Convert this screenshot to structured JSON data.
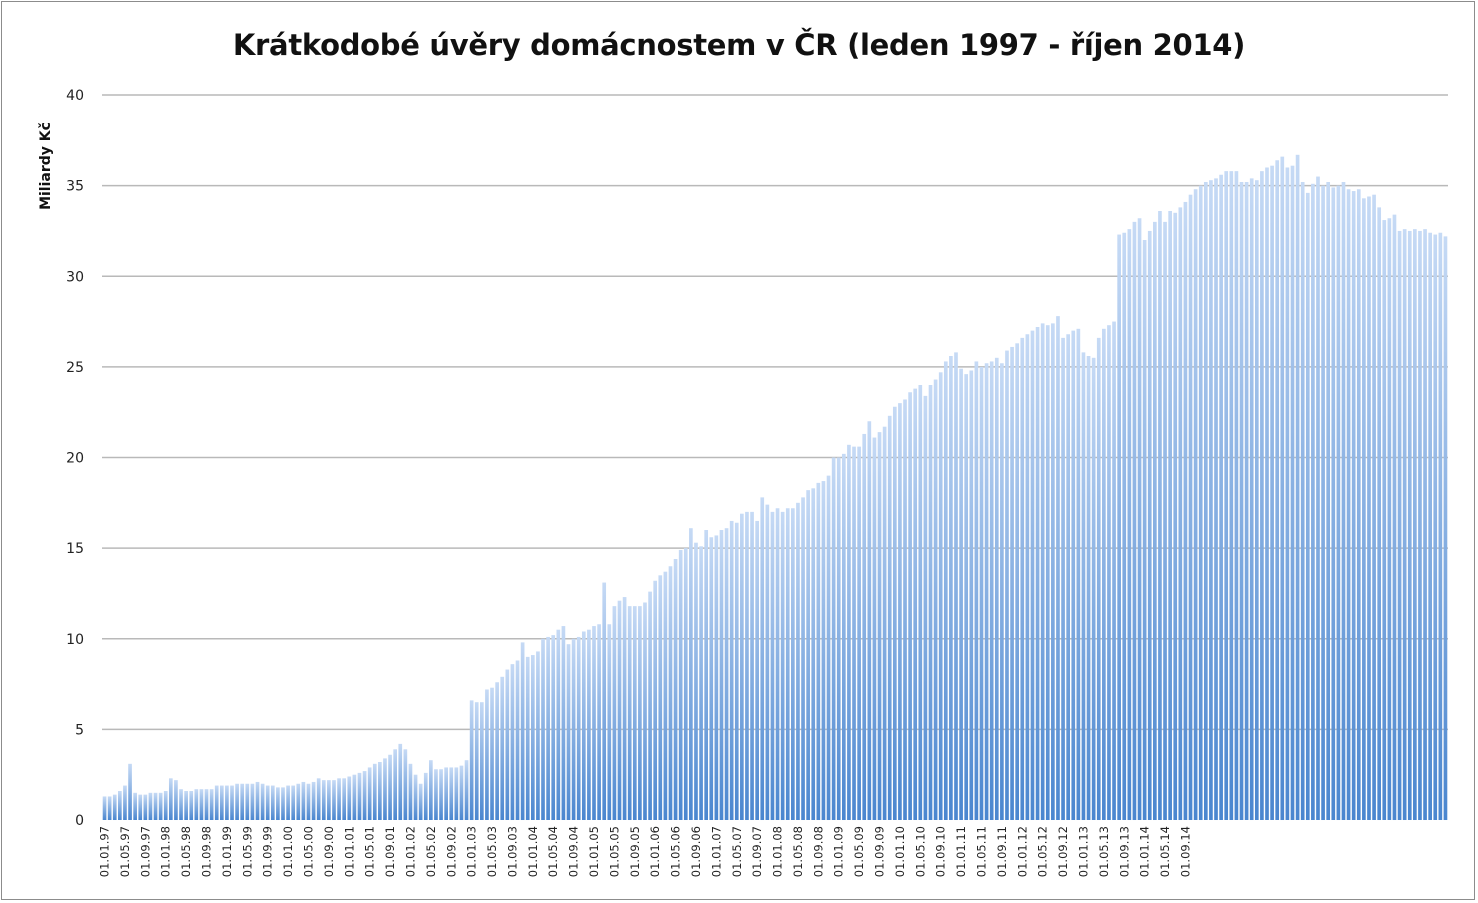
{
  "chart_data": {
    "type": "bar",
    "title": "Krátkodobé úvěry domácnostem v ČR (leden 1997 - říjen 2014)",
    "ylabel": "Miliardy Kč",
    "xlabel": "",
    "ylim": [
      0,
      40
    ],
    "yticks": [
      0,
      5,
      10,
      15,
      20,
      25,
      30,
      35,
      40
    ],
    "grid": true,
    "legend": "none",
    "bar_color_top": "#c6daf5",
    "bar_color_bottom": "#4a86cf",
    "grid_color": "#b9b9b9",
    "x_tick_labels": [
      "01.01.97",
      "01.05.97",
      "01.09.97",
      "01.01.98",
      "01.05.98",
      "01.09.98",
      "01.01.99",
      "01.05.99",
      "01.09.99",
      "01.01.00",
      "01.05.00",
      "01.09.00",
      "01.01.01",
      "01.05.01",
      "01.09.01",
      "01.01.02",
      "01.05.02",
      "01.09.02",
      "01.01.03",
      "01.05.03",
      "01.09.03",
      "01.01.04",
      "01.05.04",
      "01.09.04",
      "01.01.05",
      "01.05.05",
      "01.09.05",
      "01.01.06",
      "01.05.06",
      "01.09.06",
      "01.01.07",
      "01.05.07",
      "01.09.07",
      "01.01.08",
      "01.05.08",
      "01.09.08",
      "01.01.09",
      "01.05.09",
      "01.09.09",
      "01.01.10",
      "01.05.10",
      "01.09.10",
      "01.01.11",
      "01.05.11",
      "01.09.11",
      "01.01.12",
      "01.05.12",
      "01.09.12",
      "01.01.13",
      "01.05.13",
      "01.09.13",
      "01.01.14",
      "01.05.14",
      "01.09.14"
    ],
    "series": [
      {
        "values": [
          1.3,
          1.3,
          1.4,
          1.6,
          1.9,
          3.1,
          1.5,
          1.4,
          1.4,
          1.5,
          1.5,
          1.5,
          1.6,
          2.3,
          2.2,
          1.7,
          1.6,
          1.6,
          1.7,
          1.7,
          1.7,
          1.7,
          1.9,
          1.9,
          1.9,
          1.9,
          2.0,
          2.0,
          2.0,
          2.0,
          2.1,
          2.0,
          1.9,
          1.9,
          1.8,
          1.8,
          1.9,
          1.9,
          2.0,
          2.1,
          2.0,
          2.1,
          2.3,
          2.2,
          2.2,
          2.2,
          2.3,
          2.3,
          2.4,
          2.5,
          2.6,
          2.7,
          2.9,
          3.1,
          3.2,
          3.4,
          3.6,
          3.9,
          4.2,
          3.9,
          3.1,
          2.5,
          2.0,
          2.6,
          3.3,
          2.8,
          2.8,
          2.9,
          2.9,
          2.9,
          3.0,
          3.3,
          6.6,
          6.5,
          6.5,
          7.2,
          7.3,
          7.6,
          7.9,
          8.3,
          8.6,
          8.8,
          9.8,
          9.0,
          9.1,
          9.3,
          10.0,
          10.1,
          10.2,
          10.5,
          10.7,
          9.7,
          10.0,
          10.1,
          10.4,
          10.5,
          10.7,
          10.8,
          13.1,
          10.8,
          11.8,
          12.1,
          12.3,
          11.8,
          11.8,
          11.8,
          12.0,
          12.6,
          13.2,
          13.5,
          13.7,
          14.0,
          14.4,
          14.9,
          15.0,
          16.1,
          15.3,
          15.1,
          16.0,
          15.6,
          15.7,
          16.0,
          16.1,
          16.5,
          16.4,
          16.9,
          17.0,
          17.0,
          16.5,
          17.8,
          17.4,
          17.0,
          17.2,
          17.0,
          17.2,
          17.2,
          17.5,
          17.8,
          18.2,
          18.3,
          18.6,
          18.7,
          19.0,
          20.0,
          20.0,
          20.2,
          20.7,
          20.6,
          20.6,
          21.3,
          22.0,
          21.1,
          21.4,
          21.7,
          22.3,
          22.8,
          23.0,
          23.2,
          23.6,
          23.8,
          24.0,
          23.4,
          24.0,
          24.3,
          24.7,
          25.3,
          25.6,
          25.8,
          24.9,
          24.6,
          24.8,
          25.3,
          25.0,
          25.2,
          25.3,
          25.5,
          25.2,
          25.9,
          26.1,
          26.3,
          26.6,
          26.8,
          27.0,
          27.2,
          27.4,
          27.3,
          27.4,
          27.8,
          26.6,
          26.8,
          27.0,
          27.1,
          25.8,
          25.6,
          25.5,
          26.6,
          27.1,
          27.3,
          27.5,
          32.3,
          32.4,
          32.6,
          33.0,
          33.2,
          32.0,
          32.5,
          33.0,
          33.6,
          33.0,
          33.6,
          33.5,
          33.8,
          34.1,
          34.5,
          34.8,
          35.0,
          35.2,
          35.3,
          35.4,
          35.6,
          35.8,
          35.8,
          35.8,
          35.2,
          35.2,
          35.4,
          35.3,
          35.8,
          36.0,
          36.1,
          36.4,
          36.6,
          36.0,
          36.1,
          36.7,
          35.2,
          34.6,
          35.1,
          35.5,
          35.0,
          35.2,
          34.9,
          35.0,
          35.2,
          34.8,
          34.7,
          34.8,
          34.3,
          34.4,
          34.5,
          33.8,
          33.1,
          33.2,
          33.4,
          32.5,
          32.6,
          32.5,
          32.6,
          32.5,
          32.6,
          32.4,
          32.3,
          32.4,
          32.2
        ]
      }
    ]
  }
}
